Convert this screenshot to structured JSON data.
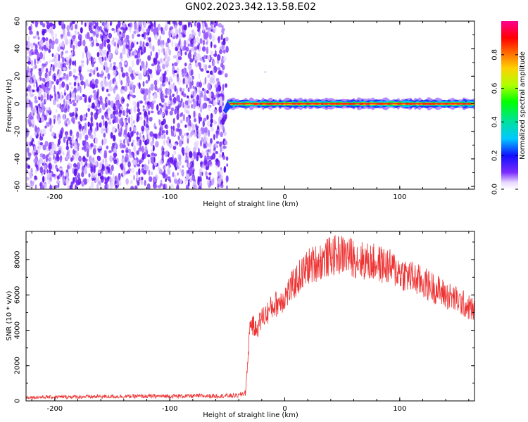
{
  "title": "GN02.2023.342.13.58.E02",
  "chart_data": [
    {
      "type": "heatmap",
      "xlabel": "Height of straight line (km)",
      "ylabel": "Frequency (Hz)",
      "xlim": [
        -225,
        165
      ],
      "ylim": [
        -62,
        60
      ],
      "xticks": [
        -200,
        -100,
        0,
        100
      ],
      "yticks": [
        -60,
        -40,
        -20,
        0,
        20,
        40,
        60
      ],
      "colorbar": {
        "label": "Normalized spectral amplitude",
        "range": [
          0,
          1
        ],
        "ticks": [
          0.0,
          0.2,
          0.4,
          0.6,
          0.8
        ]
      },
      "noise_region_x": [
        -225,
        -50
      ],
      "signal_region_x": [
        -50,
        165
      ],
      "signal_frequency_hz": 0
    },
    {
      "type": "line",
      "xlabel": "Height of straight line (km)",
      "ylabel": "SNR (10 * v/v)",
      "xlim": [
        -225,
        165
      ],
      "ylim": [
        0,
        9600
      ],
      "xticks": [
        -200,
        -100,
        0,
        100
      ],
      "yticks": [
        0,
        2000,
        4000,
        6000,
        8000
      ],
      "series": [
        {
          "color": "#ee3333",
          "x": [
            -225,
            -200,
            -150,
            -100,
            -60,
            -40,
            -34,
            -30,
            -25,
            -20,
            -15,
            -10,
            -5,
            0,
            10,
            20,
            30,
            40,
            50,
            60,
            70,
            80,
            90,
            100,
            110,
            120,
            130,
            140,
            150,
            160,
            165
          ],
          "y": [
            200,
            220,
            250,
            270,
            280,
            300,
            500,
            4500,
            4000,
            4700,
            5000,
            5400,
            5600,
            5900,
            6800,
            7600,
            7900,
            8200,
            8300,
            8100,
            7900,
            7800,
            7600,
            7300,
            7000,
            6700,
            6400,
            6000,
            5700,
            5300,
            5100
          ]
        }
      ]
    }
  ]
}
